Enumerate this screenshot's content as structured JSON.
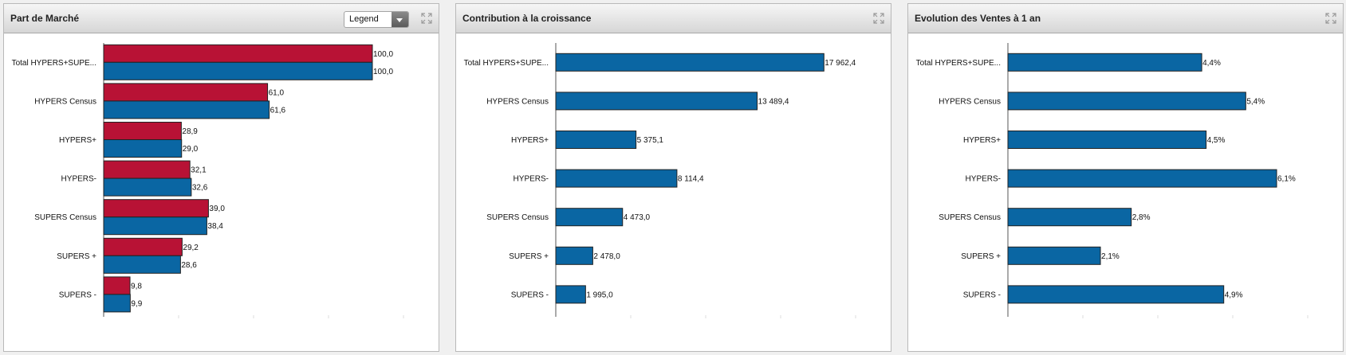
{
  "panels": [
    {
      "title": "Part de Marché",
      "legend_label": "Legend"
    },
    {
      "title": "Contribution à la croissance"
    },
    {
      "title": "Evolution des Ventes à 1 an"
    }
  ],
  "colors": {
    "red": "#b81235",
    "blue": "#0a66a3"
  },
  "chart_data": [
    {
      "type": "bar",
      "orientation": "horizontal",
      "categories": [
        "Total HYPERS+SUPE...",
        "HYPERS Census",
        "HYPERS+",
        "HYPERS-",
        "SUPERS Census",
        "SUPERS +",
        "SUPERS -"
      ],
      "series": [
        {
          "color": "#b81235",
          "values": [
            100.0,
            61.0,
            28.9,
            32.1,
            39.0,
            29.2,
            9.8
          ],
          "labels": [
            "100,0",
            "61,0",
            "28,9",
            "32,1",
            "39,0",
            "29,2",
            "9,8"
          ]
        },
        {
          "color": "#0a66a3",
          "values": [
            100.0,
            61.6,
            29.0,
            32.6,
            38.4,
            28.6,
            9.9
          ],
          "labels": [
            "100,0",
            "61,6",
            "29,0",
            "32,6",
            "38,4",
            "28,6",
            "9,9"
          ]
        }
      ],
      "xlim": [
        0,
        100
      ],
      "grid": false
    },
    {
      "type": "bar",
      "orientation": "horizontal",
      "categories": [
        "Total HYPERS+SUPE...",
        "HYPERS Census",
        "HYPERS+",
        "HYPERS-",
        "SUPERS Census",
        "SUPERS +",
        "SUPERS -"
      ],
      "series": [
        {
          "color": "#0a66a3",
          "values": [
            17962.4,
            13489.4,
            5375.1,
            8114.4,
            4473.0,
            2478.0,
            1995.0
          ],
          "labels": [
            "17 962,4",
            "13 489,4",
            "5 375,1",
            "8 114,4",
            "4 473,0",
            "2 478,0",
            "1 995,0"
          ]
        }
      ],
      "xlim": [
        0,
        18000
      ],
      "grid": false
    },
    {
      "type": "bar",
      "orientation": "horizontal",
      "categories": [
        "Total HYPERS+SUPE...",
        "HYPERS Census",
        "HYPERS+",
        "HYPERS-",
        "SUPERS Census",
        "SUPERS +",
        "SUPERS -"
      ],
      "series": [
        {
          "color": "#0a66a3",
          "values": [
            4.4,
            5.4,
            4.5,
            6.1,
            2.8,
            2.1,
            4.9
          ],
          "labels": [
            "4,4%",
            "5,4%",
            "4,5%",
            "6,1%",
            "2,8%",
            "2,1%",
            "4,9%"
          ]
        }
      ],
      "xlim": [
        0,
        6.1
      ],
      "grid": false
    }
  ]
}
